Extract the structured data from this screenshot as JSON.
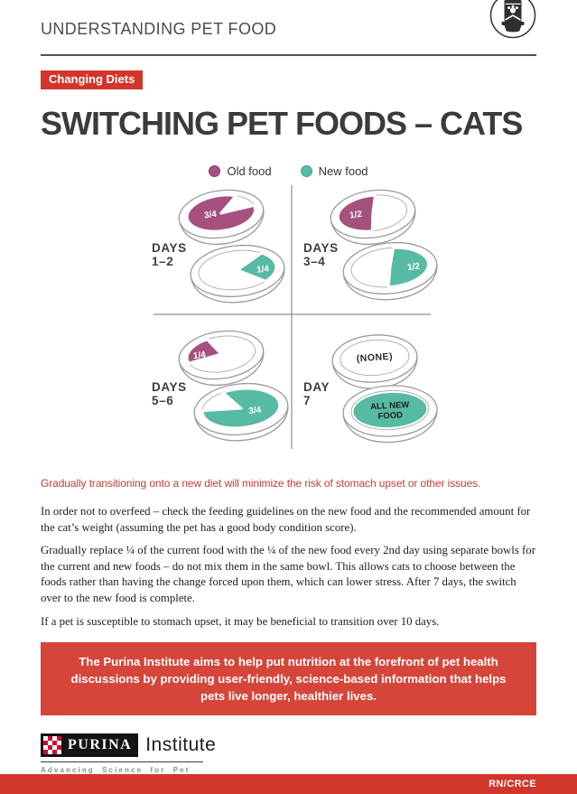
{
  "header": {
    "title": "UNDERSTANDING PET FOOD"
  },
  "badge": {
    "label": "Changing Diets"
  },
  "page_title": "SWITCHING PET FOODS – CATS",
  "legend": {
    "items": [
      {
        "id": "old",
        "label": "Old food"
      },
      {
        "id": "new",
        "label": "New food"
      }
    ]
  },
  "diagram": {
    "quadrants": [
      {
        "day_line1": "DAYS",
        "day_line2": "1–2",
        "old_portion": "3/4",
        "new_portion": "1/4"
      },
      {
        "day_line1": "DAYS",
        "day_line2": "3–4",
        "old_portion": "1/2",
        "new_portion": "1/2"
      },
      {
        "day_line1": "DAYS",
        "day_line2": "5–6",
        "old_portion": "1/4",
        "new_portion": "3/4"
      },
      {
        "day_line1": "DAY",
        "day_line2": "7",
        "old_portion": "(NONE)",
        "new_portion": "ALL NEW FOOD"
      }
    ]
  },
  "lead": "Gradually transitioning onto a new diet will minimize the risk of stomach upset or other issues.",
  "paragraphs": [
    "In order not to overfeed – check the feeding guidelines on the new food and the recommended amount for the cat’s weight (assuming the pet has a good body condition score).",
    "Gradually replace ¼ of the current food with the ¼ of the new food every 2nd day using separate bowls for the current and new foods – do not mix them in the same bowl. This allows cats to choose between the foods rather than having the change forced upon them, which can lower stress. After 7 days, the switch over to the new food is complete.",
    "If a pet is susceptible to stomach upset, it may be beneficial to transition over 10 days."
  ],
  "callout": "The Purina Institute aims to help put nutrition at the forefront of pet health discussions by providing user-friendly, science-based information that helps pets live longer, healthier lives.",
  "footer": {
    "brand": "PURINA",
    "brand_suffix": "Institute",
    "tagline": "Advancing Science for Pet Health",
    "doc_code": "RN/CRCE"
  },
  "colors": {
    "old_food": "#a5507e",
    "new_food": "#57baa2",
    "accent_red": "#d2362b",
    "callout_red": "#d6453a",
    "lead_red": "#c03d33",
    "purina_red": "#c8102e"
  }
}
